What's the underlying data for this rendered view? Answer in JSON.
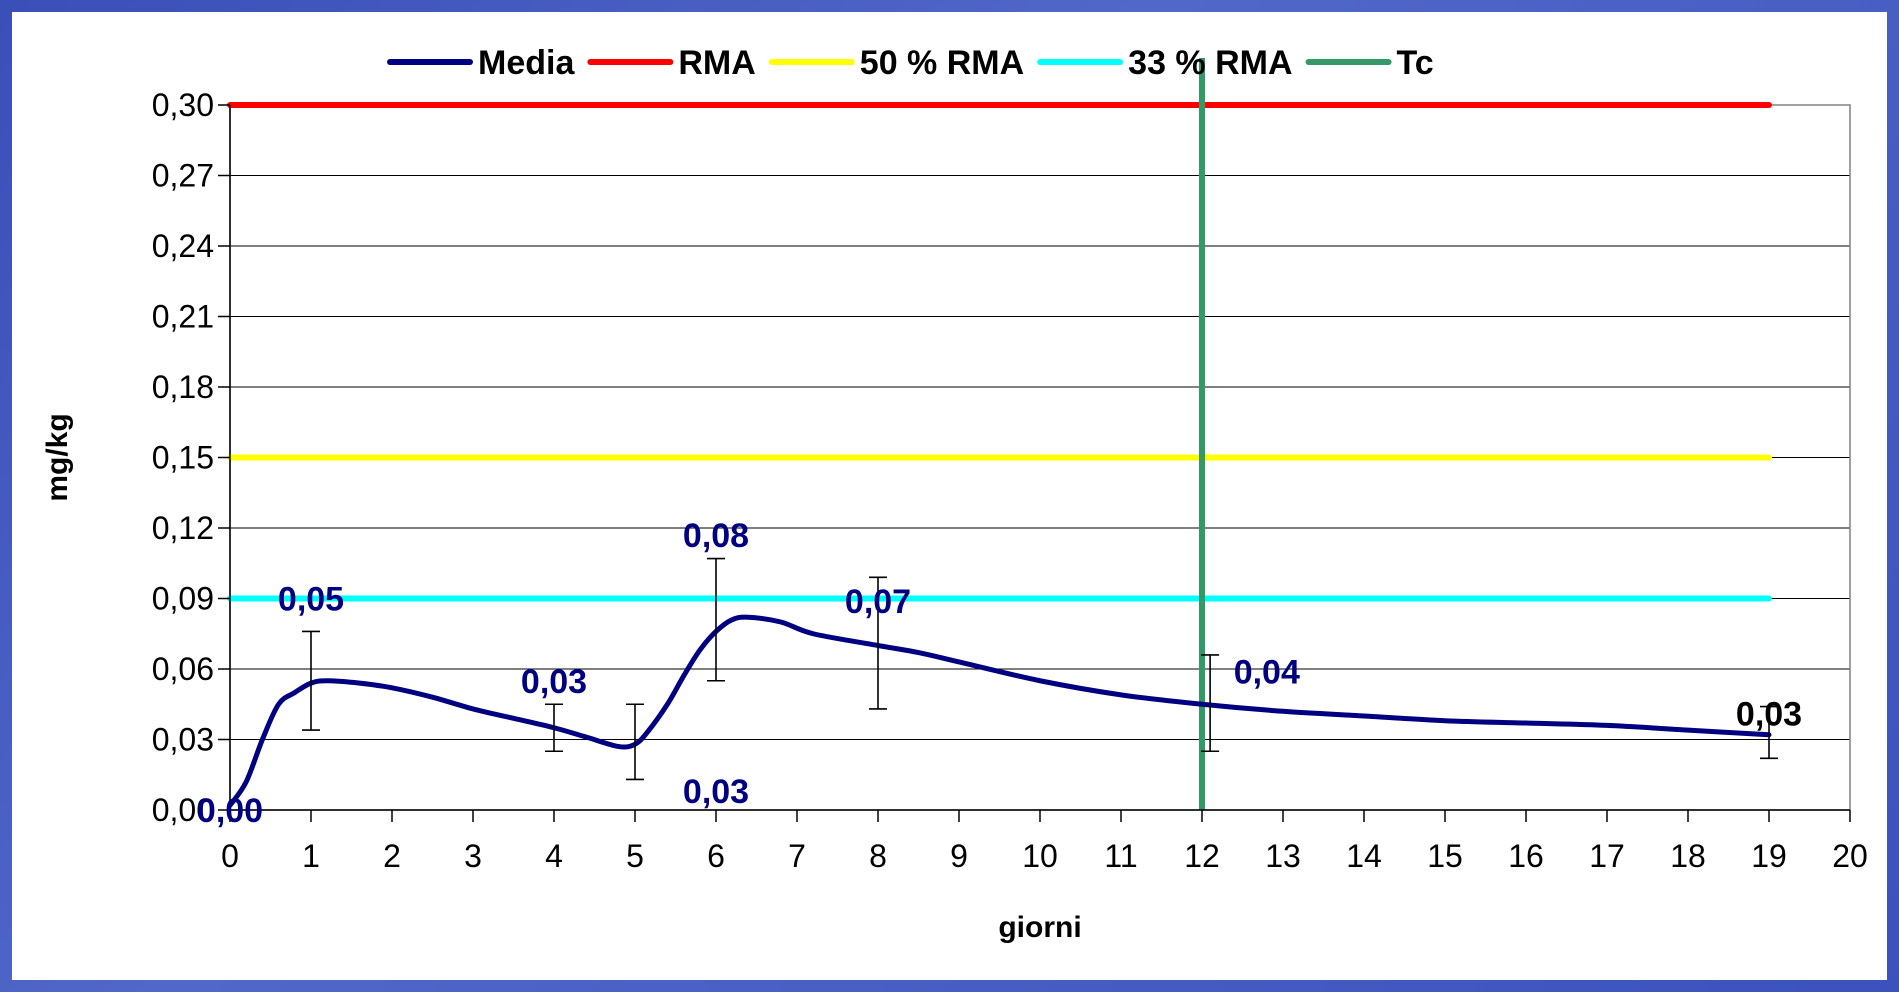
{
  "chart_data": {
    "type": "line",
    "xlabel": "giorni",
    "ylabel": "mg/kg",
    "xlim": [
      0,
      20
    ],
    "ylim": [
      0,
      0.3
    ],
    "x_ticks": [
      "0",
      "1",
      "2",
      "3",
      "4",
      "5",
      "6",
      "7",
      "8",
      "9",
      "10",
      "11",
      "12",
      "13",
      "14",
      "15",
      "16",
      "17",
      "18",
      "19",
      "20"
    ],
    "y_ticks": [
      "0,00",
      "0,03",
      "0,06",
      "0,09",
      "0,12",
      "0,15",
      "0,18",
      "0,21",
      "0,24",
      "0,27",
      "0,30"
    ],
    "grid": true,
    "legend_position": "top",
    "series": [
      {
        "name": "Media",
        "color": "#000080",
        "style": "smooth-line",
        "points": [
          {
            "x": 0,
            "y": 0.002
          },
          {
            "x": 0.2,
            "y": 0.012
          },
          {
            "x": 0.4,
            "y": 0.03
          },
          {
            "x": 0.6,
            "y": 0.045
          },
          {
            "x": 0.8,
            "y": 0.05
          },
          {
            "x": 1,
            "y": 0.054
          },
          {
            "x": 1.2,
            "y": 0.055
          },
          {
            "x": 1.6,
            "y": 0.054
          },
          {
            "x": 2,
            "y": 0.052
          },
          {
            "x": 2.5,
            "y": 0.048
          },
          {
            "x": 3,
            "y": 0.043
          },
          {
            "x": 3.5,
            "y": 0.039
          },
          {
            "x": 4,
            "y": 0.035
          },
          {
            "x": 4.4,
            "y": 0.031
          },
          {
            "x": 4.8,
            "y": 0.027
          },
          {
            "x": 5,
            "y": 0.028
          },
          {
            "x": 5.15,
            "y": 0.033
          },
          {
            "x": 5.4,
            "y": 0.045
          },
          {
            "x": 5.6,
            "y": 0.057
          },
          {
            "x": 5.8,
            "y": 0.068
          },
          {
            "x": 6,
            "y": 0.076
          },
          {
            "x": 6.2,
            "y": 0.081
          },
          {
            "x": 6.4,
            "y": 0.082
          },
          {
            "x": 6.8,
            "y": 0.08
          },
          {
            "x": 7.2,
            "y": 0.075
          },
          {
            "x": 8,
            "y": 0.07
          },
          {
            "x": 8.5,
            "y": 0.067
          },
          {
            "x": 9,
            "y": 0.063
          },
          {
            "x": 10,
            "y": 0.055
          },
          {
            "x": 11,
            "y": 0.049
          },
          {
            "x": 12,
            "y": 0.045
          },
          {
            "x": 13,
            "y": 0.042
          },
          {
            "x": 14,
            "y": 0.04
          },
          {
            "x": 15,
            "y": 0.038
          },
          {
            "x": 16,
            "y": 0.037
          },
          {
            "x": 17,
            "y": 0.036
          },
          {
            "x": 18,
            "y": 0.034
          },
          {
            "x": 19,
            "y": 0.032
          }
        ]
      },
      {
        "name": "RMA",
        "color": "#ff0000",
        "style": "hline",
        "y": 0.3,
        "x_range": [
          0,
          19
        ]
      },
      {
        "name": "50 % RMA",
        "color": "#ffff00",
        "style": "hline",
        "y": 0.15,
        "x_range": [
          0,
          19
        ]
      },
      {
        "name": "33 % RMA",
        "color": "#00ffff",
        "style": "hline",
        "y": 0.09,
        "x_range": [
          0,
          19
        ]
      },
      {
        "name": "Tc",
        "color": "#339966",
        "style": "vline",
        "x": 12,
        "y_range": [
          0,
          0.32
        ]
      }
    ],
    "error_bars": [
      {
        "x": 1,
        "low": 0.034,
        "high": 0.076
      },
      {
        "x": 4,
        "low": 0.025,
        "high": 0.045
      },
      {
        "x": 5,
        "low": 0.013,
        "high": 0.045
      },
      {
        "x": 6,
        "low": 0.055,
        "high": 0.107
      },
      {
        "x": 8,
        "low": 0.043,
        "high": 0.099
      },
      {
        "x": 12.1,
        "low": 0.025,
        "high": 0.066
      },
      {
        "x": 19,
        "low": 0.022,
        "high": 0.044
      }
    ],
    "data_labels": [
      {
        "text": "0,00",
        "x": 0,
        "y": 0.0,
        "color": "#000080"
      },
      {
        "text": "0,05",
        "x": 1,
        "y": 0.09,
        "color": "#000080"
      },
      {
        "text": "0,03",
        "x": 4,
        "y": 0.055,
        "color": "#000080"
      },
      {
        "text": "0,03",
        "x": 6,
        "y": 0.008,
        "color": "#000080"
      },
      {
        "text": "0,08",
        "x": 6,
        "y": 0.117,
        "color": "#000080"
      },
      {
        "text": "0,07",
        "x": 8,
        "y": 0.089,
        "color": "#000080"
      },
      {
        "text": "0,04",
        "x": 12.8,
        "y": 0.059,
        "color": "#000080"
      },
      {
        "text": "0,03",
        "x": 19,
        "y": 0.041,
        "color": "#000000"
      }
    ]
  }
}
